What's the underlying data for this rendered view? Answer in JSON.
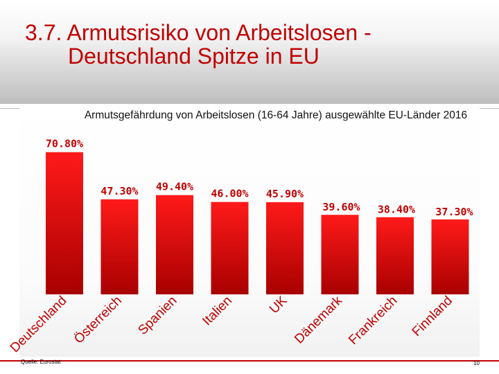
{
  "slide": {
    "title_line1": "3.7. Armutsrisiko von Arbeitslosen -",
    "title_line2": "Deutschland Spitze in EU",
    "source": "Quelle: Eurostat",
    "page_number": "10"
  },
  "colors": {
    "accent": "#c00000",
    "bar_top": "#ff1a1a",
    "bar_bottom": "#a80000"
  },
  "chart_data": {
    "type": "bar",
    "title": "Armutsgefährdung von Arbeitslosen (16-64 Jahre) ausgewählte EU-Länder 2016",
    "categories": [
      "Deutschland",
      "Österreich",
      "Spanien",
      "Italien",
      "UK",
      "Dänemark",
      "Frankreich",
      "Finnland"
    ],
    "values": [
      70.8,
      47.3,
      49.4,
      46.0,
      45.9,
      39.6,
      38.4,
      37.3
    ],
    "value_labels": [
      "70.80%",
      "47.30%",
      "49.40%",
      "46.00%",
      "45.90%",
      "39.60%",
      "38.40%",
      "37.30%"
    ],
    "xlabel": "",
    "ylabel": "",
    "ylim": [
      0,
      100
    ],
    "grid": false,
    "legend": "none"
  }
}
